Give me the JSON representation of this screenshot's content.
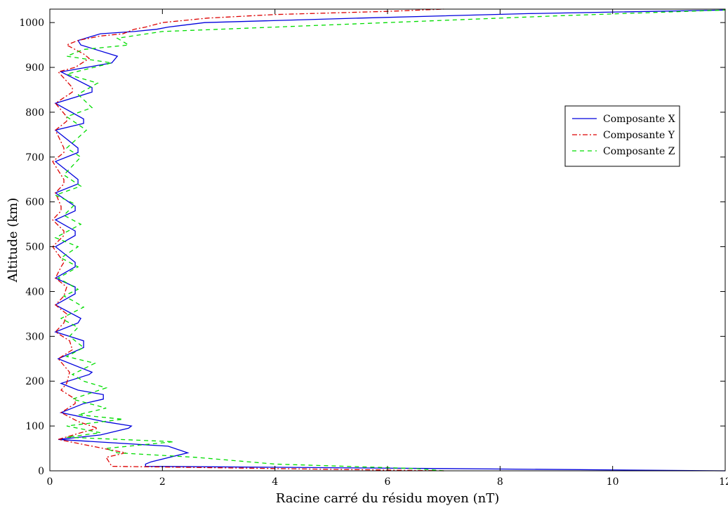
{
  "chart_data": {
    "type": "line",
    "title": "",
    "xlabel": "Racine carré du résidu moyen (nT)",
    "ylabel": "Altitude (km)",
    "xlim": [
      0,
      12
    ],
    "ylim": [
      0,
      1030
    ],
    "xticks": [
      0,
      2,
      4,
      6,
      8,
      10,
      12
    ],
    "yticks": [
      0,
      100,
      200,
      300,
      400,
      500,
      600,
      700,
      800,
      900,
      1000
    ],
    "grid": false,
    "legend_position": "top-right",
    "series": [
      {
        "name": "Composante X",
        "color": "#0000dd",
        "dash": "solid",
        "points": [
          [
            12.0,
            0
          ],
          [
            7.0,
            5
          ],
          [
            1.7,
            10
          ],
          [
            1.7,
            15
          ],
          [
            1.8,
            20
          ],
          [
            2.45,
            40
          ],
          [
            2.1,
            55
          ],
          [
            0.15,
            70
          ],
          [
            0.9,
            80
          ],
          [
            1.4,
            95
          ],
          [
            1.45,
            100
          ],
          [
            0.95,
            110
          ],
          [
            0.2,
            130
          ],
          [
            0.6,
            150
          ],
          [
            0.95,
            160
          ],
          [
            0.95,
            170
          ],
          [
            0.5,
            180
          ],
          [
            0.2,
            195
          ],
          [
            0.7,
            215
          ],
          [
            0.75,
            220
          ],
          [
            0.15,
            250
          ],
          [
            0.6,
            275
          ],
          [
            0.6,
            290
          ],
          [
            0.1,
            310
          ],
          [
            0.5,
            330
          ],
          [
            0.55,
            340
          ],
          [
            0.1,
            370
          ],
          [
            0.45,
            395
          ],
          [
            0.45,
            410
          ],
          [
            0.1,
            430
          ],
          [
            0.45,
            455
          ],
          [
            0.45,
            465
          ],
          [
            0.1,
            500
          ],
          [
            0.45,
            525
          ],
          [
            0.45,
            535
          ],
          [
            0.1,
            560
          ],
          [
            0.45,
            580
          ],
          [
            0.45,
            590
          ],
          [
            0.1,
            620
          ],
          [
            0.5,
            640
          ],
          [
            0.5,
            650
          ],
          [
            0.1,
            690
          ],
          [
            0.5,
            710
          ],
          [
            0.5,
            720
          ],
          [
            0.1,
            760
          ],
          [
            0.6,
            775
          ],
          [
            0.6,
            785
          ],
          [
            0.1,
            820
          ],
          [
            0.75,
            845
          ],
          [
            0.75,
            855
          ],
          [
            0.2,
            890
          ],
          [
            1.1,
            910
          ],
          [
            1.2,
            925
          ],
          [
            0.55,
            950
          ],
          [
            0.5,
            960
          ],
          [
            0.9,
            975
          ],
          [
            1.5,
            980
          ],
          [
            1.9,
            985
          ],
          [
            2.1,
            990
          ],
          [
            2.75,
            1000
          ],
          [
            5.5,
            1010
          ],
          [
            8.5,
            1020
          ],
          [
            12.0,
            1028
          ]
        ]
      },
      {
        "name": "Composante Y",
        "color": "#dd0000",
        "dash": "7,3,2,3",
        "points": [
          [
            7.0,
            0
          ],
          [
            4.0,
            5
          ],
          [
            1.1,
            10
          ],
          [
            1.05,
            20
          ],
          [
            1.0,
            30
          ],
          [
            1.35,
            40
          ],
          [
            0.95,
            50
          ],
          [
            0.15,
            70
          ],
          [
            0.55,
            85
          ],
          [
            0.85,
            95
          ],
          [
            0.5,
            110
          ],
          [
            0.2,
            130
          ],
          [
            0.45,
            150
          ],
          [
            0.45,
            160
          ],
          [
            0.2,
            180
          ],
          [
            0.3,
            195
          ],
          [
            0.35,
            220
          ],
          [
            0.15,
            250
          ],
          [
            0.4,
            270
          ],
          [
            0.35,
            290
          ],
          [
            0.1,
            310
          ],
          [
            0.25,
            330
          ],
          [
            0.3,
            350
          ],
          [
            0.1,
            370
          ],
          [
            0.25,
            390
          ],
          [
            0.3,
            410
          ],
          [
            0.1,
            430
          ],
          [
            0.2,
            455
          ],
          [
            0.25,
            465
          ],
          [
            0.05,
            500
          ],
          [
            0.25,
            525
          ],
          [
            0.25,
            535
          ],
          [
            0.05,
            560
          ],
          [
            0.2,
            580
          ],
          [
            0.2,
            590
          ],
          [
            0.1,
            620
          ],
          [
            0.25,
            640
          ],
          [
            0.25,
            650
          ],
          [
            0.05,
            690
          ],
          [
            0.25,
            710
          ],
          [
            0.25,
            720
          ],
          [
            0.1,
            760
          ],
          [
            0.3,
            780
          ],
          [
            0.3,
            790
          ],
          [
            0.1,
            820
          ],
          [
            0.4,
            845
          ],
          [
            0.4,
            855
          ],
          [
            0.15,
            890
          ],
          [
            0.45,
            900
          ],
          [
            0.7,
            920
          ],
          [
            0.6,
            930
          ],
          [
            0.3,
            950
          ],
          [
            0.5,
            960
          ],
          [
            0.9,
            970
          ],
          [
            1.3,
            975
          ],
          [
            1.5,
            985
          ],
          [
            1.7,
            990
          ],
          [
            2.0,
            1000
          ],
          [
            2.8,
            1010
          ],
          [
            4.0,
            1018
          ],
          [
            6.0,
            1025
          ],
          [
            7.0,
            1030
          ]
        ]
      },
      {
        "name": "Composante Z",
        "color": "#00dd00",
        "dash": "6,5",
        "points": [
          [
            7.0,
            0
          ],
          [
            6.5,
            5
          ],
          [
            4.0,
            15
          ],
          [
            2.6,
            30
          ],
          [
            1.2,
            40
          ],
          [
            1.0,
            50
          ],
          [
            2.2,
            65
          ],
          [
            0.3,
            75
          ],
          [
            0.9,
            85
          ],
          [
            0.3,
            100
          ],
          [
            1.3,
            115
          ],
          [
            0.5,
            125
          ],
          [
            1.0,
            140
          ],
          [
            0.4,
            160
          ],
          [
            1.0,
            185
          ],
          [
            0.6,
            200
          ],
          [
            0.4,
            215
          ],
          [
            0.8,
            240
          ],
          [
            0.3,
            255
          ],
          [
            0.6,
            275
          ],
          [
            0.35,
            300
          ],
          [
            0.5,
            320
          ],
          [
            0.2,
            340
          ],
          [
            0.6,
            365
          ],
          [
            0.4,
            380
          ],
          [
            0.25,
            390
          ],
          [
            0.5,
            405
          ],
          [
            0.15,
            430
          ],
          [
            0.5,
            455
          ],
          [
            0.2,
            475
          ],
          [
            0.5,
            500
          ],
          [
            0.1,
            520
          ],
          [
            0.55,
            550
          ],
          [
            0.25,
            570
          ],
          [
            0.45,
            595
          ],
          [
            0.1,
            615
          ],
          [
            0.55,
            635
          ],
          [
            0.25,
            660
          ],
          [
            0.55,
            700
          ],
          [
            0.3,
            720
          ],
          [
            0.65,
            760
          ],
          [
            0.3,
            790
          ],
          [
            0.75,
            810
          ],
          [
            0.5,
            840
          ],
          [
            0.85,
            865
          ],
          [
            0.3,
            885
          ],
          [
            1.1,
            910
          ],
          [
            0.3,
            925
          ],
          [
            0.6,
            940
          ],
          [
            1.4,
            950
          ],
          [
            1.2,
            965
          ],
          [
            2.0,
            980
          ],
          [
            4.0,
            990
          ],
          [
            6.0,
            1000
          ],
          [
            9.0,
            1015
          ],
          [
            12.0,
            1028
          ]
        ]
      }
    ]
  }
}
